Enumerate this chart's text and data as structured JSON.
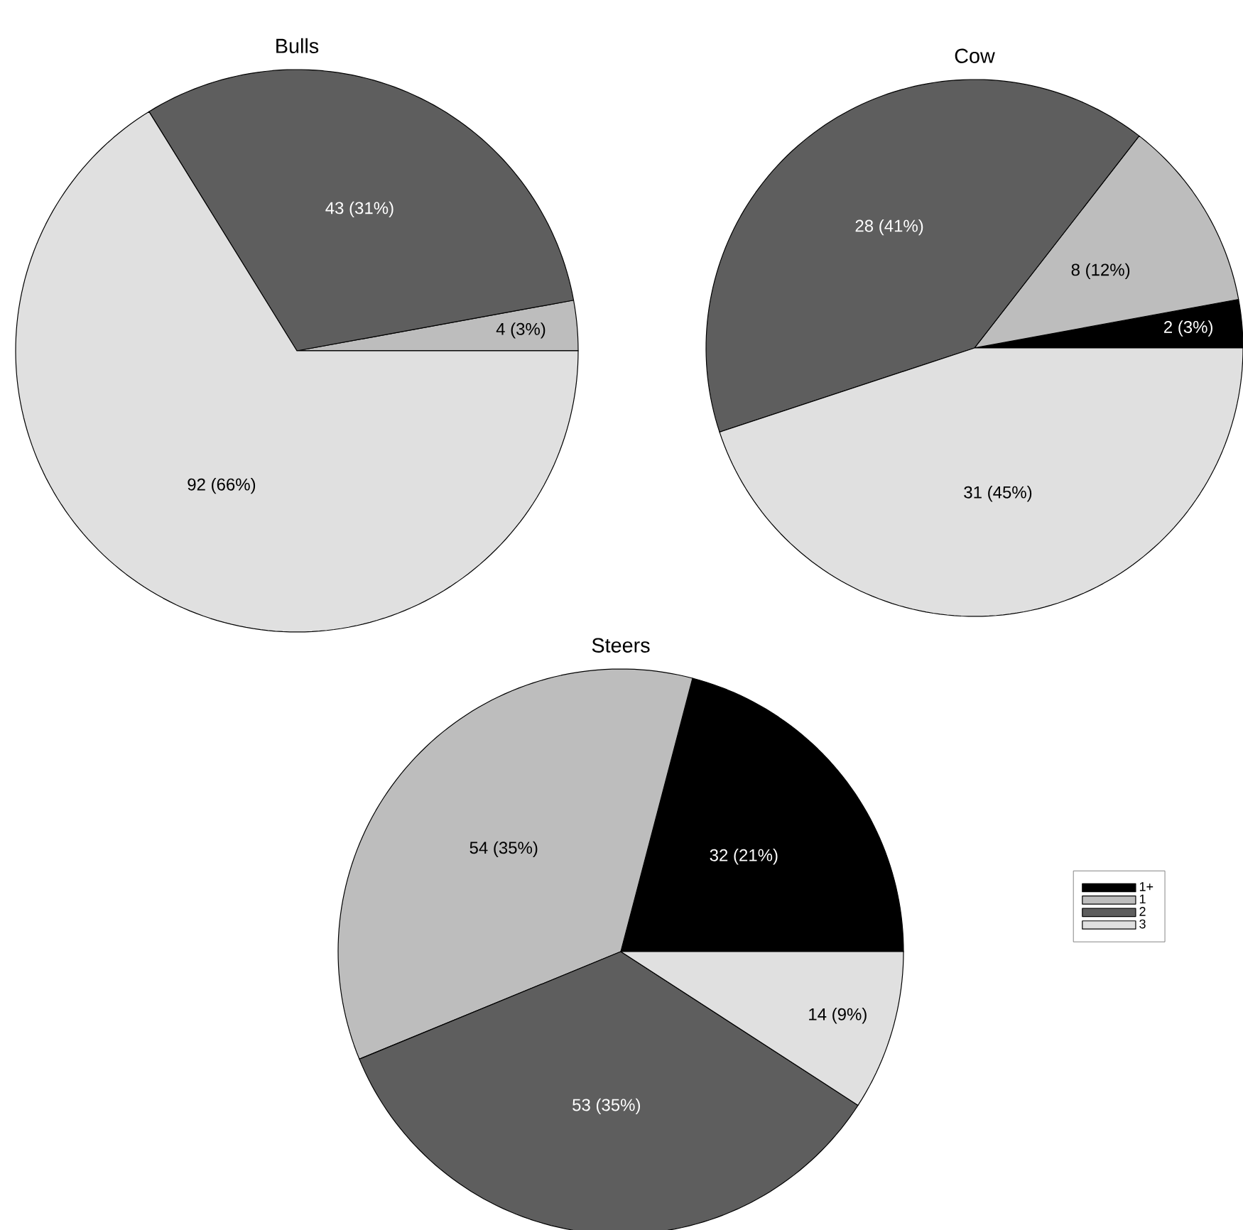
{
  "chart_data": [
    {
      "type": "pie",
      "title": "Bulls",
      "values": [
        4,
        43,
        92
      ],
      "colors": [
        "#bdbdbd",
        "#5e5e5e",
        "#e0e0e0"
      ],
      "value_labels": [
        "4 (3%)",
        "43 (31%)",
        "92 (66%)"
      ]
    },
    {
      "type": "pie",
      "title": "Cow",
      "values": [
        2,
        8,
        28,
        31
      ],
      "colors": [
        "#000000",
        "#bdbdbd",
        "#5e5e5e",
        "#e0e0e0"
      ],
      "value_labels": [
        "2 (3%)",
        "8 (12%)",
        "28 (41%)",
        "31 (45%)"
      ]
    },
    {
      "type": "pie",
      "title": "Steers",
      "categories": [
        "1+",
        "1",
        "2",
        "3"
      ],
      "values": [
        32,
        54,
        53,
        14
      ],
      "colors": [
        "#000000",
        "#bdbdbd",
        "#5e5e5e",
        "#e0e0e0"
      ],
      "value_labels": [
        "32 (21%)",
        "54 (35%)",
        "53 (35%)",
        "14 (9%)"
      ],
      "legend": "right"
    }
  ]
}
